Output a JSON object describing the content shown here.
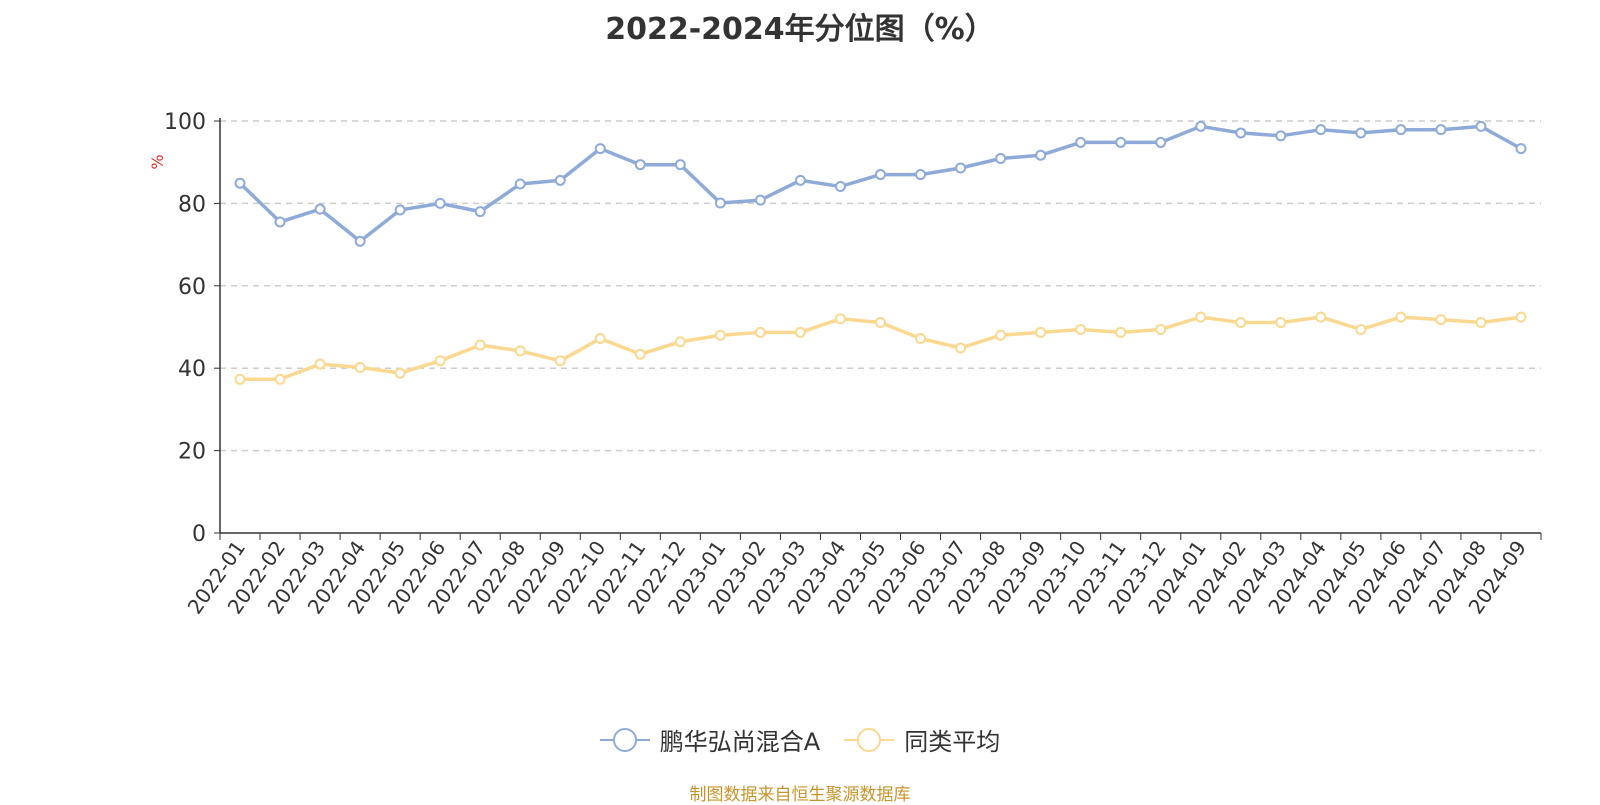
{
  "chart_data": {
    "type": "line",
    "title": "2022-2024年分位图（%）",
    "ylabel": "%",
    "ylim": [
      0,
      100
    ],
    "yticks": [
      0,
      20,
      40,
      60,
      80,
      100
    ],
    "grid": true,
    "legend_position": "bottom-center",
    "categories": [
      "2022-01",
      "2022-02",
      "2022-03",
      "2022-04",
      "2022-05",
      "2022-06",
      "2022-07",
      "2022-08",
      "2022-09",
      "2022-10",
      "2022-11",
      "2022-12",
      "2023-01",
      "2023-02",
      "2023-03",
      "2023-04",
      "2023-05",
      "2023-06",
      "2023-07",
      "2023-08",
      "2023-09",
      "2023-10",
      "2023-11",
      "2023-12",
      "2024-01",
      "2024-02",
      "2024-03",
      "2024-04",
      "2024-05",
      "2024-06",
      "2024-07",
      "2024-08",
      "2024-09"
    ],
    "series": [
      {
        "name": "鹏华弘尚混合A",
        "color": "#8eaad9",
        "values": [
          84.9,
          75.5,
          78.6,
          70.8,
          78.4,
          80.0,
          78.0,
          84.7,
          85.6,
          93.3,
          89.4,
          89.4,
          80.1,
          80.8,
          85.6,
          84.1,
          87.0,
          87.0,
          88.6,
          90.9,
          91.7,
          94.8,
          94.8,
          94.8,
          98.7,
          97.1,
          96.4,
          97.9,
          97.1,
          97.9,
          97.9,
          98.7,
          93.3
        ]
      },
      {
        "name": "同类平均",
        "color": "#fad88f",
        "values": [
          37.3,
          37.3,
          41.0,
          40.2,
          38.8,
          41.8,
          45.6,
          44.2,
          41.8,
          47.2,
          43.4,
          46.4,
          48.0,
          48.7,
          48.7,
          52.0,
          51.1,
          47.2,
          44.9,
          48.0,
          48.7,
          49.4,
          48.7,
          49.4,
          52.4,
          51.1,
          51.1,
          52.4,
          49.4,
          52.4,
          51.8,
          51.1,
          52.4
        ]
      }
    ]
  },
  "source_note": "制图数据来自恒生聚源数据库",
  "colors": {
    "source_note": "#c8952c",
    "axis_unit": "#e03030",
    "grid": "#cccccc",
    "axis": "#333333"
  }
}
